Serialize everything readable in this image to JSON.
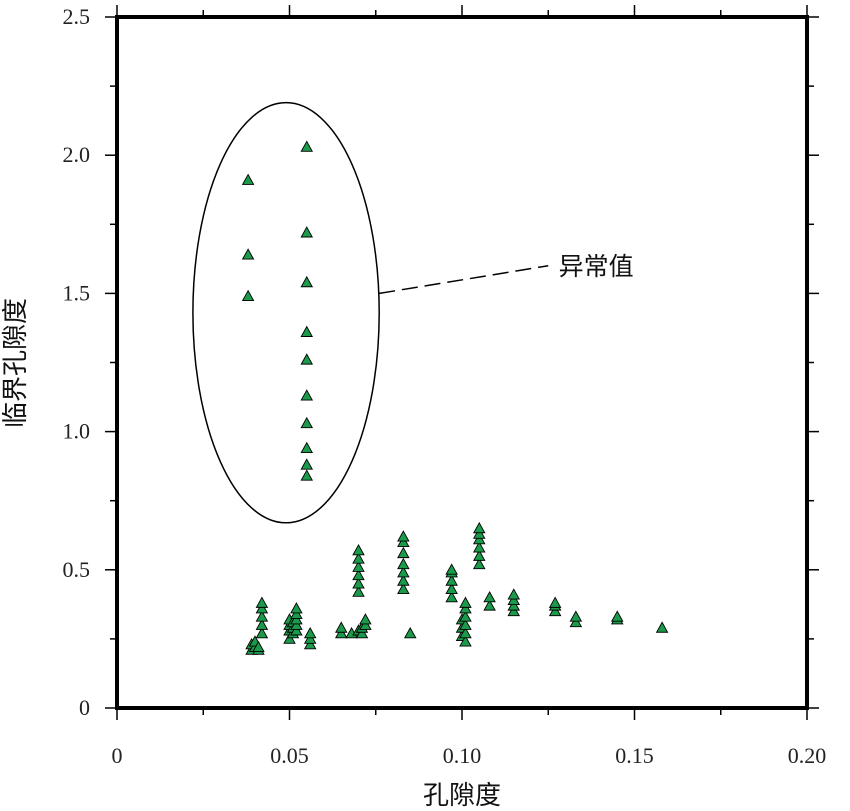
{
  "chart_data": {
    "type": "scatter",
    "xlabel": "孔隙度",
    "ylabel": "临界孔隙度",
    "xlim": [
      0,
      0.2
    ],
    "ylim": [
      0,
      2.5
    ],
    "x_ticks": [
      0,
      0.05,
      0.1,
      0.15,
      0.2
    ],
    "x_tick_labels": [
      "0",
      "0.05",
      "0.10",
      "0.15",
      "0.20"
    ],
    "y_ticks": [
      0,
      0.5,
      1.0,
      1.5,
      2.0,
      2.5
    ],
    "y_tick_labels": [
      "0",
      "0.5",
      "1.0",
      "1.5",
      "2.0",
      "2.5"
    ],
    "grid": false,
    "marker": "triangle",
    "marker_color": "#1a9a4a",
    "marker_edge_color": "#000000",
    "annotation": {
      "text": "异常值",
      "ellipse_center": [
        0.049,
        1.43
      ],
      "ellipse_radii": [
        0.027,
        0.76
      ]
    },
    "outliers": [
      [
        0.038,
        1.91
      ],
      [
        0.038,
        1.64
      ],
      [
        0.038,
        1.49
      ],
      [
        0.055,
        2.03
      ],
      [
        0.055,
        1.72
      ],
      [
        0.055,
        1.54
      ],
      [
        0.055,
        1.36
      ],
      [
        0.055,
        1.26
      ],
      [
        0.055,
        1.13
      ],
      [
        0.055,
        1.03
      ],
      [
        0.055,
        0.94
      ],
      [
        0.055,
        0.88
      ],
      [
        0.055,
        0.84
      ]
    ],
    "points": [
      [
        0.039,
        0.21
      ],
      [
        0.039,
        0.23
      ],
      [
        0.04,
        0.22
      ],
      [
        0.04,
        0.24
      ],
      [
        0.041,
        0.21
      ],
      [
        0.041,
        0.22
      ],
      [
        0.042,
        0.27
      ],
      [
        0.042,
        0.3
      ],
      [
        0.042,
        0.33
      ],
      [
        0.042,
        0.36
      ],
      [
        0.042,
        0.38
      ],
      [
        0.05,
        0.25
      ],
      [
        0.05,
        0.28
      ],
      [
        0.05,
        0.3
      ],
      [
        0.05,
        0.32
      ],
      [
        0.051,
        0.27
      ],
      [
        0.051,
        0.29
      ],
      [
        0.051,
        0.31
      ],
      [
        0.052,
        0.28
      ],
      [
        0.052,
        0.3
      ],
      [
        0.052,
        0.32
      ],
      [
        0.052,
        0.34
      ],
      [
        0.052,
        0.36
      ],
      [
        0.056,
        0.23
      ],
      [
        0.056,
        0.25
      ],
      [
        0.056,
        0.27
      ],
      [
        0.065,
        0.27
      ],
      [
        0.065,
        0.29
      ],
      [
        0.068,
        0.27
      ],
      [
        0.07,
        0.28
      ],
      [
        0.07,
        0.42
      ],
      [
        0.07,
        0.45
      ],
      [
        0.07,
        0.48
      ],
      [
        0.07,
        0.51
      ],
      [
        0.07,
        0.54
      ],
      [
        0.07,
        0.57
      ],
      [
        0.071,
        0.27
      ],
      [
        0.071,
        0.29
      ],
      [
        0.072,
        0.3
      ],
      [
        0.072,
        0.32
      ],
      [
        0.083,
        0.43
      ],
      [
        0.083,
        0.46
      ],
      [
        0.083,
        0.49
      ],
      [
        0.083,
        0.52
      ],
      [
        0.083,
        0.56
      ],
      [
        0.083,
        0.6
      ],
      [
        0.083,
        0.62
      ],
      [
        0.085,
        0.27
      ],
      [
        0.097,
        0.4
      ],
      [
        0.097,
        0.43
      ],
      [
        0.097,
        0.46
      ],
      [
        0.097,
        0.49
      ],
      [
        0.097,
        0.5
      ],
      [
        0.1,
        0.26
      ],
      [
        0.1,
        0.29
      ],
      [
        0.1,
        0.32
      ],
      [
        0.101,
        0.24
      ],
      [
        0.101,
        0.27
      ],
      [
        0.101,
        0.3
      ],
      [
        0.101,
        0.33
      ],
      [
        0.101,
        0.36
      ],
      [
        0.101,
        0.38
      ],
      [
        0.105,
        0.52
      ],
      [
        0.105,
        0.55
      ],
      [
        0.105,
        0.58
      ],
      [
        0.105,
        0.61
      ],
      [
        0.105,
        0.63
      ],
      [
        0.105,
        0.65
      ],
      [
        0.108,
        0.37
      ],
      [
        0.108,
        0.4
      ],
      [
        0.115,
        0.35
      ],
      [
        0.115,
        0.37
      ],
      [
        0.115,
        0.39
      ],
      [
        0.115,
        0.41
      ],
      [
        0.127,
        0.35
      ],
      [
        0.127,
        0.37
      ],
      [
        0.127,
        0.38
      ],
      [
        0.133,
        0.31
      ],
      [
        0.133,
        0.33
      ],
      [
        0.145,
        0.32
      ],
      [
        0.145,
        0.33
      ],
      [
        0.158,
        0.29
      ]
    ]
  }
}
